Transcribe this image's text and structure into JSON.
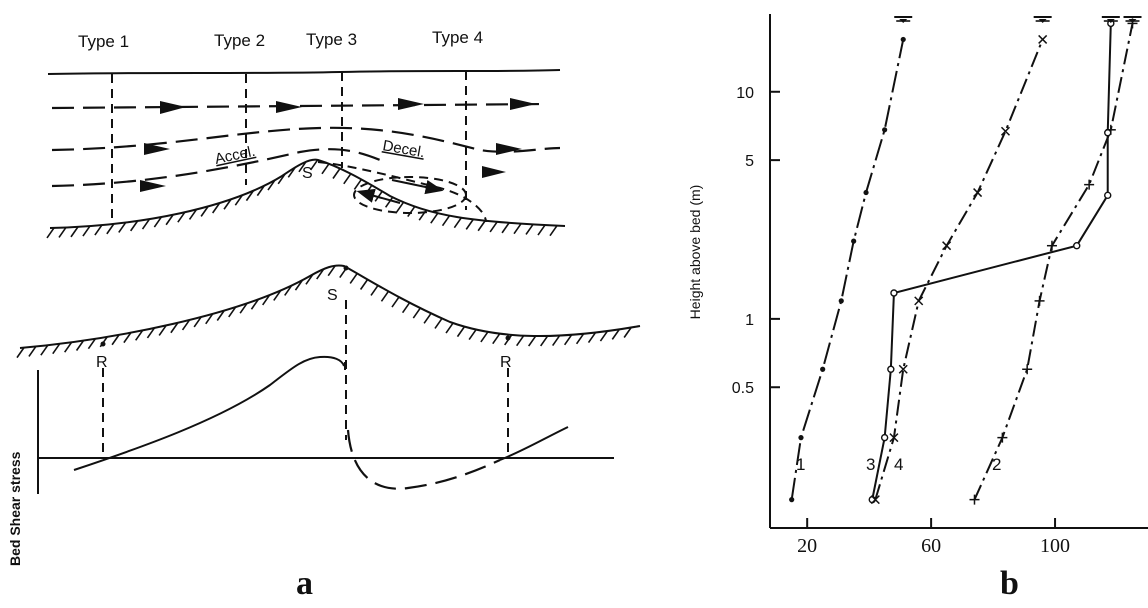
{
  "panel_a": {
    "panel_label": "a",
    "types": [
      "Type 1",
      "Type 2",
      "Type 3",
      "Type 4"
    ],
    "accel_label": "Accel.",
    "decel_label": "Decel.",
    "sep_label": "S",
    "reattach_label": "R",
    "shear_axis_label": "Bed Shear stress"
  },
  "panel_b": {
    "panel_label": "b",
    "ylabel": "Height above bed (m)",
    "y_ticks": [
      "10",
      "5",
      "1",
      "0.5"
    ],
    "x_ticks": [
      "20",
      "60",
      "100"
    ]
  },
  "chart_data": {
    "type": "line",
    "title": "",
    "xlabel": "",
    "ylabel": "Height above bed (m)",
    "y_scale": "log",
    "xlim": [
      8,
      130
    ],
    "ylim": [
      0.12,
      22
    ],
    "series": [
      {
        "name": "1",
        "points": [
          [
            15,
            0.16
          ],
          [
            18,
            0.3
          ],
          [
            25,
            0.6
          ],
          [
            31,
            1.2
          ],
          [
            35,
            2.2
          ],
          [
            39,
            3.6
          ],
          [
            45,
            6.8
          ],
          [
            51,
            17
          ]
        ]
      },
      {
        "name": "2",
        "points": [
          [
            74,
            0.16
          ],
          [
            83,
            0.3
          ],
          [
            91,
            0.6
          ],
          [
            95,
            1.2
          ],
          [
            99,
            2.1
          ],
          [
            111,
            3.9
          ],
          [
            118,
            6.8
          ],
          [
            125,
            20
          ]
        ]
      },
      {
        "name": "3",
        "points": [
          [
            41,
            0.16
          ],
          [
            45,
            0.3
          ],
          [
            47,
            0.6
          ],
          [
            48,
            1.3
          ],
          [
            107,
            2.1
          ],
          [
            117,
            3.5
          ],
          [
            117,
            6.6
          ],
          [
            118,
            20
          ]
        ]
      },
      {
        "name": "4",
        "points": [
          [
            42,
            0.16
          ],
          [
            48,
            0.3
          ],
          [
            51,
            0.6
          ],
          [
            56,
            1.2
          ],
          [
            65,
            2.1
          ],
          [
            75,
            3.6
          ],
          [
            84,
            6.7
          ],
          [
            96,
            17
          ]
        ]
      }
    ],
    "curve_labels": [
      "1",
      "2",
      "3",
      "4"
    ],
    "grid": false
  }
}
